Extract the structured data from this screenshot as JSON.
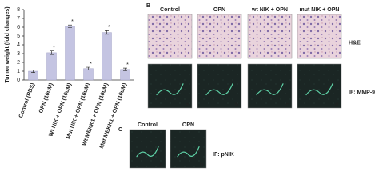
{
  "chart_data": {
    "type": "bar",
    "y_label": "Tumor weight (fold changes)",
    "categories": [
      "Control (PBS)",
      "OPN (10uM)",
      "Wt NIK + OPN (10uM)",
      "Mut NIK + OPN (10uM)",
      "Wt MEKK1 + OPN (10uM)",
      "Mut MEKK1 + OPN (10uM)"
    ],
    "values": [
      1.0,
      3.1,
      6.1,
      1.3,
      5.4,
      1.2
    ],
    "errors": [
      0.15,
      0.2,
      0.15,
      0.15,
      0.2,
      0.15
    ],
    "annotations": [
      {
        "x": "OPN (10uM)",
        "text": "*"
      },
      {
        "x": "Wt NIK + OPN (10uM)",
        "text": "*"
      },
      {
        "x": "Mut NIK + OPN (10uM)",
        "text": "*"
      },
      {
        "x": "Wt MEKK1 + OPN (10uM)",
        "text": "*"
      },
      {
        "x": "Mut MEKK1 + OPN (10uM)",
        "text": "*"
      }
    ],
    "color": "#c4c4e2",
    "ylim": [
      0,
      8
    ],
    "yticks": [
      0,
      1,
      2,
      3,
      4,
      5,
      6,
      7,
      8
    ]
  },
  "panel_b": {
    "label": "B",
    "columns": [
      "Control",
      "OPN",
      "wt NIK + OPN",
      "mut NIK + OPN"
    ],
    "rows": [
      {
        "label": "H&E"
      },
      {
        "label": "IF: MMP-9",
        "image_labels": [
          "a",
          "b",
          "c",
          "d"
        ]
      }
    ]
  },
  "panel_c": {
    "label": "C",
    "columns": [
      "Control",
      "OPN"
    ],
    "rows": [
      {
        "label": "IF: pNIK",
        "image_labels": [
          "a",
          "b"
        ]
      }
    ]
  }
}
